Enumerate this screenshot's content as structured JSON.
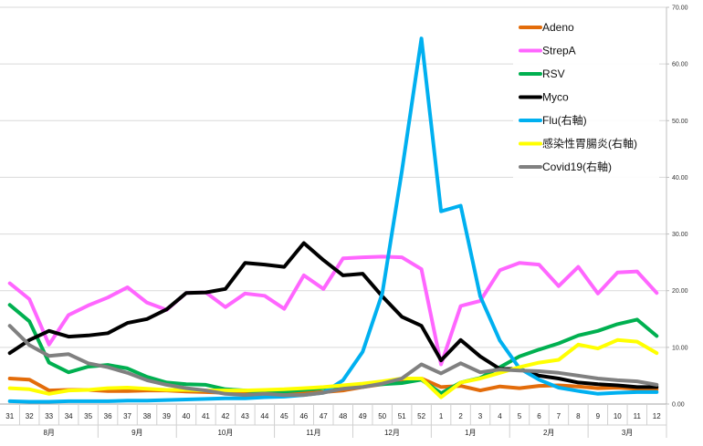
{
  "chart_data": {
    "type": "line",
    "title": "",
    "xlabel": "",
    "ylabel": "",
    "y_right_lim": [
      0,
      70
    ],
    "y_right_ticks": [
      "0.00",
      "10.00",
      "20.00",
      "30.00",
      "40.00",
      "50.00",
      "60.00",
      "70.00"
    ],
    "grid": "horizontal",
    "legend_position": "top-right",
    "categories": [
      "31",
      "32",
      "33",
      "34",
      "35",
      "36",
      "37",
      "38",
      "39",
      "40",
      "41",
      "42",
      "43",
      "44",
      "45",
      "46",
      "47",
      "48",
      "49",
      "50",
      "51",
      "52",
      "1",
      "2",
      "3",
      "4",
      "5",
      "6",
      "7",
      "8",
      "9",
      "10",
      "11",
      "12"
    ],
    "months": [
      {
        "label": "8月",
        "start": 0,
        "end": 5
      },
      {
        "label": "9月",
        "start": 5,
        "end": 9
      },
      {
        "label": "10月",
        "start": 9,
        "end": 14
      },
      {
        "label": "11月",
        "start": 14,
        "end": 18
      },
      {
        "label": "12月",
        "start": 18,
        "end": 22
      },
      {
        "label": "1月",
        "start": 22,
        "end": 26
      },
      {
        "label": "2月",
        "start": 26,
        "end": 30
      },
      {
        "label": "3月",
        "start": 30,
        "end": 34
      }
    ],
    "series": [
      {
        "name": "Adeno",
        "color": "#E36C0A",
        "axis": "right",
        "values": [
          4.5,
          4.3,
          2.4,
          2.5,
          2.5,
          2.3,
          2.3,
          2.4,
          2.4,
          2.2,
          2.1,
          2.0,
          1.9,
          2.0,
          2.1,
          2.0,
          2.1,
          2.4,
          3.0,
          3.5,
          4.0,
          4.5,
          3.0,
          3.2,
          2.4,
          3.1,
          2.8,
          3.2,
          3.3,
          3.1,
          2.8,
          2.9,
          2.7,
          2.6
        ]
      },
      {
        "name": "StrepA",
        "color": "#FF66FF",
        "axis": "right",
        "values": [
          21.3,
          18.5,
          10.5,
          15.7,
          17.4,
          18.8,
          20.6,
          17.9,
          16.6,
          19.6,
          19.7,
          17.1,
          19.5,
          19.1,
          16.8,
          22.7,
          20.3,
          25.7,
          25.9,
          26.0,
          25.9,
          23.8,
          7.0,
          17.3,
          18.2,
          23.6,
          24.9,
          24.6,
          20.8,
          24.2,
          19.5,
          23.2,
          23.4,
          19.6
        ]
      },
      {
        "name": "RSV",
        "color": "#00B050",
        "axis": "right",
        "values": [
          17.5,
          14.6,
          7.3,
          5.6,
          6.6,
          6.9,
          6.3,
          4.8,
          3.8,
          3.5,
          3.4,
          2.6,
          2.4,
          2.2,
          2.2,
          2.5,
          2.8,
          3.0,
          3.2,
          3.5,
          3.7,
          4.3,
          1.9,
          3.8,
          4.6,
          6.5,
          8.4,
          9.6,
          10.7,
          12.1,
          12.9,
          14.1,
          14.9,
          12.0
        ]
      },
      {
        "name": "Myco",
        "color": "#000000",
        "axis": "right",
        "values": [
          9.0,
          11.3,
          12.9,
          11.9,
          12.1,
          12.5,
          14.3,
          15.0,
          16.7,
          19.6,
          19.7,
          20.3,
          24.9,
          24.6,
          24.2,
          28.4,
          25.4,
          22.7,
          23.0,
          19.0,
          15.4,
          13.8,
          7.7,
          11.3,
          8.4,
          6.2,
          6.2,
          5.0,
          4.5,
          3.8,
          3.5,
          3.3,
          3.0,
          3.0
        ]
      },
      {
        "name": "Flu(右軸)",
        "color": "#00B0F0",
        "axis": "right",
        "values": [
          0.5,
          0.4,
          0.4,
          0.5,
          0.5,
          0.5,
          0.6,
          0.6,
          0.7,
          0.8,
          0.9,
          1.0,
          1.0,
          1.2,
          1.3,
          1.6,
          2.0,
          4.2,
          9.2,
          19.5,
          41.0,
          64.5,
          34.0,
          35.0,
          19.0,
          11.2,
          6.3,
          4.3,
          2.9,
          2.3,
          1.8,
          2.0,
          2.1,
          2.1
        ]
      },
      {
        "name": "感染性胃腸炎(右軸)",
        "color": "#FFFF00",
        "axis": "right",
        "values": [
          2.8,
          2.6,
          1.8,
          2.4,
          2.5,
          2.8,
          2.9,
          2.7,
          2.5,
          2.5,
          2.4,
          2.4,
          2.4,
          2.5,
          2.6,
          2.8,
          3.0,
          3.3,
          3.6,
          4.0,
          4.5,
          4.5,
          1.2,
          3.8,
          4.5,
          5.5,
          6.5,
          7.3,
          7.8,
          10.5,
          9.8,
          11.3,
          11.0,
          9.0
        ]
      },
      {
        "name": "Covid19(右軸)",
        "color": "#808080",
        "axis": "right",
        "values": [
          13.8,
          10.4,
          8.5,
          8.8,
          7.2,
          6.5,
          5.5,
          4.2,
          3.4,
          2.8,
          2.4,
          1.8,
          1.6,
          1.8,
          1.6,
          1.6,
          2.0,
          2.7,
          3.0,
          3.6,
          4.5,
          7.0,
          5.4,
          7.2,
          5.6,
          6.1,
          5.9,
          5.8,
          5.5,
          5.0,
          4.5,
          4.2,
          4.0,
          3.4
        ]
      }
    ]
  }
}
